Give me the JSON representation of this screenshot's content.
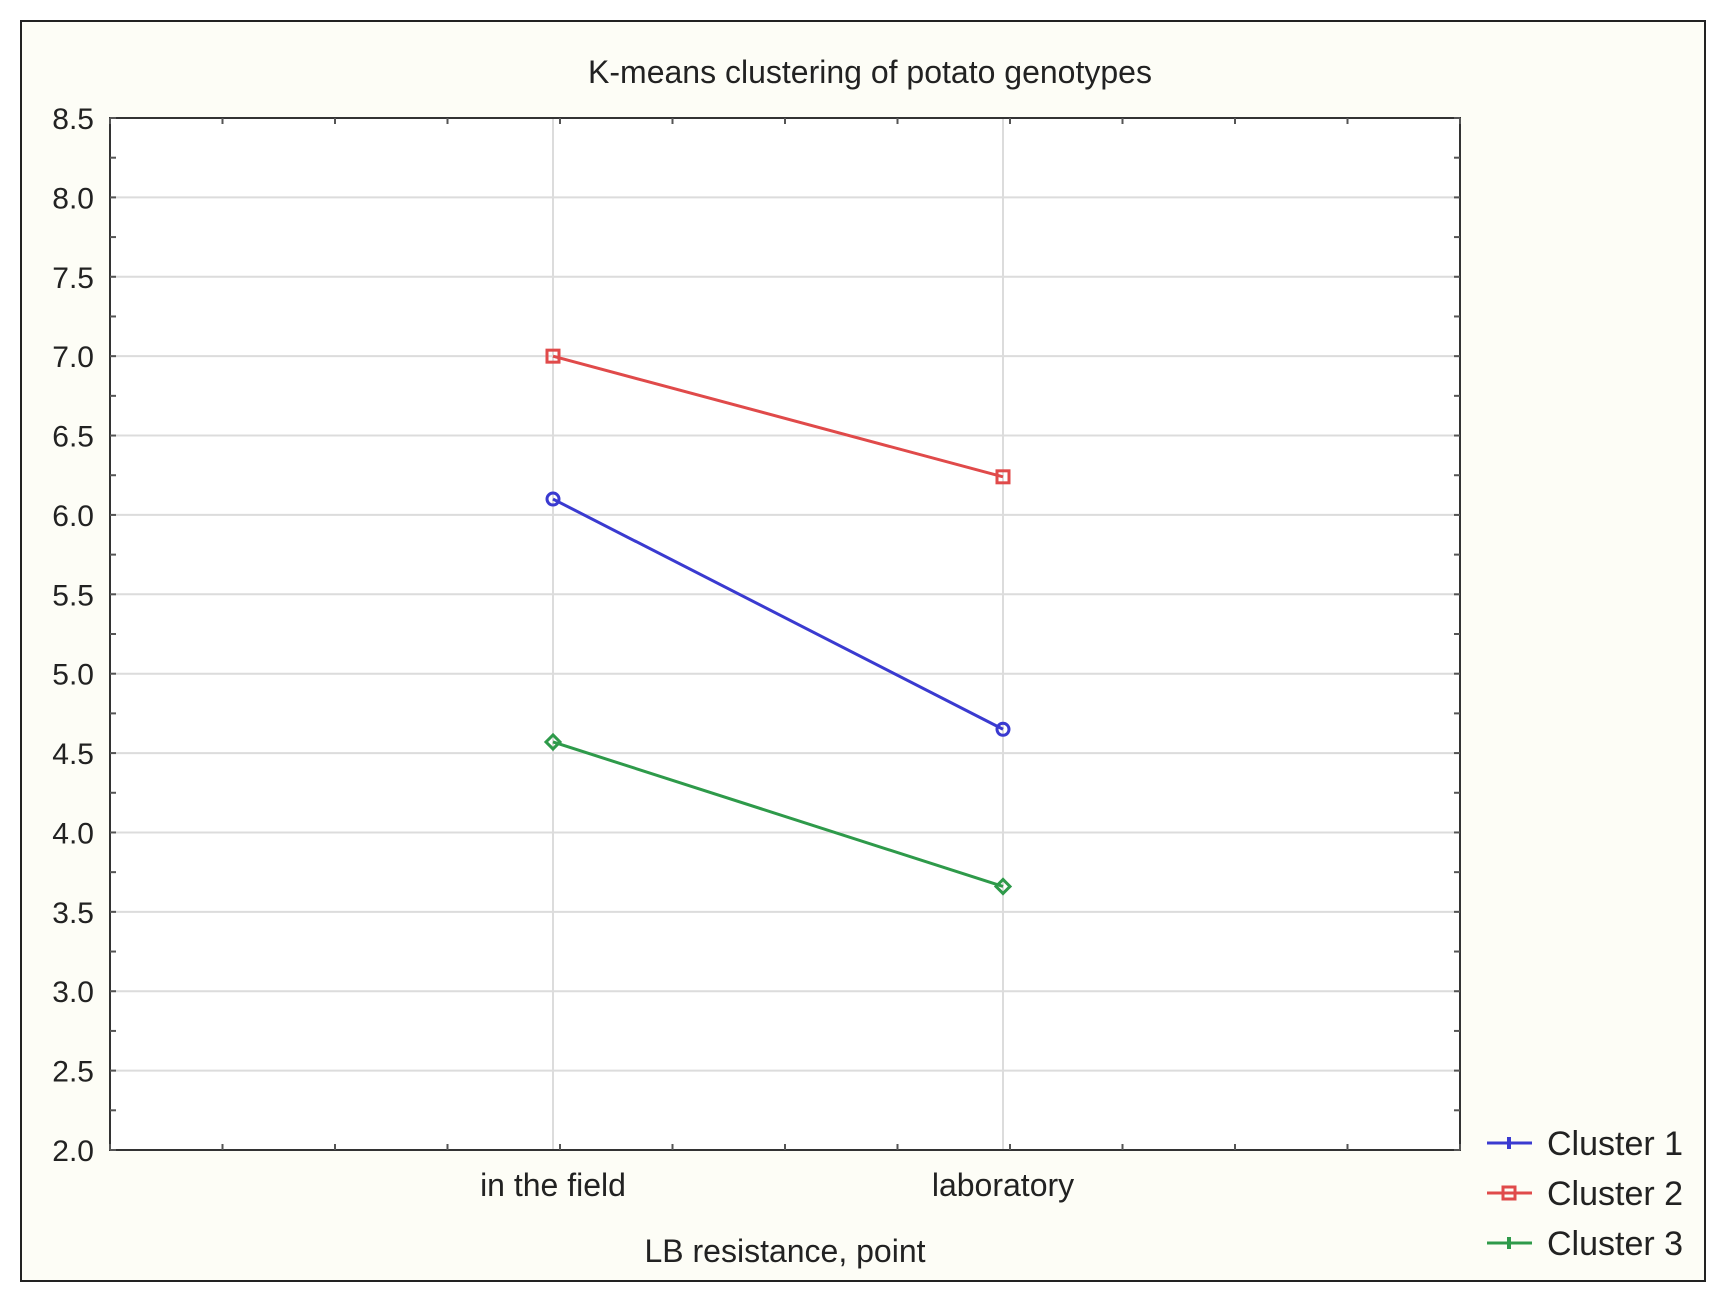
{
  "chart_data": {
    "type": "line",
    "title": "K-means clustering of potato genotypes",
    "xlabel": "LB resistance, point",
    "ylabel": "",
    "categories": [
      "in the field",
      "laboratory"
    ],
    "ylim": [
      2.0,
      8.5
    ],
    "yticks": [
      "2.0",
      "2.5",
      "3.0",
      "3.5",
      "4.0",
      "4.5",
      "5.0",
      "5.5",
      "6.0",
      "6.5",
      "7.0",
      "7.5",
      "8.0",
      "8.5"
    ],
    "grid": true,
    "legend_position": "bottom-right, outside plot",
    "series": [
      {
        "name": "Cluster 1",
        "values": [
          6.1,
          4.65
        ],
        "color": "#3a3ad0",
        "marker": "circle"
      },
      {
        "name": "Cluster 2",
        "values": [
          7.0,
          6.24
        ],
        "color": "#e04a4a",
        "marker": "square"
      },
      {
        "name": "Cluster 3",
        "values": [
          4.57,
          3.66
        ],
        "color": "#2e9a4a",
        "marker": "diamond"
      }
    ]
  }
}
